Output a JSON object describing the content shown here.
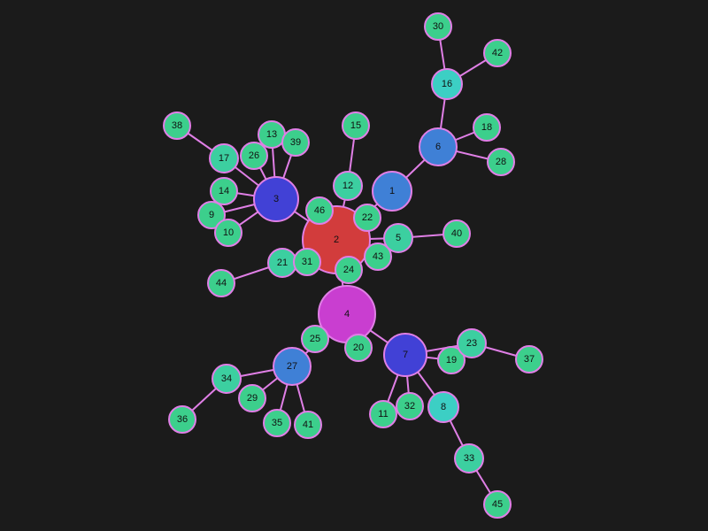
{
  "colors": {
    "background": "#1b1b1b",
    "edge": "#e07fe6",
    "node_stroke": "#e07fe6",
    "label": "#111111"
  },
  "graph": {
    "nodes": [
      {
        "id": "1",
        "color": "#3f80d6"
      },
      {
        "id": "2",
        "color": "#d23c3c"
      },
      {
        "id": "3",
        "color": "#4141d6"
      },
      {
        "id": "4",
        "color": "#c93ed0"
      },
      {
        "id": "5",
        "color": "#3ccfa0"
      },
      {
        "id": "6",
        "color": "#3f80d6"
      },
      {
        "id": "7",
        "color": "#4141d6"
      },
      {
        "id": "8",
        "color": "#3ccfc4"
      },
      {
        "id": "9",
        "color": "#3ccf8c"
      },
      {
        "id": "10",
        "color": "#3ccf8c"
      },
      {
        "id": "11",
        "color": "#3ccf8c"
      },
      {
        "id": "12",
        "color": "#3ccfa0"
      },
      {
        "id": "13",
        "color": "#3ccf8c"
      },
      {
        "id": "14",
        "color": "#3ccf8c"
      },
      {
        "id": "15",
        "color": "#3ccf8c"
      },
      {
        "id": "16",
        "color": "#3ccfc4"
      },
      {
        "id": "17",
        "color": "#3ccfa0"
      },
      {
        "id": "18",
        "color": "#3ccf8c"
      },
      {
        "id": "19",
        "color": "#3ccf8c"
      },
      {
        "id": "20",
        "color": "#3ccf8c"
      },
      {
        "id": "21",
        "color": "#3ccfa0"
      },
      {
        "id": "22",
        "color": "#3ccf8c"
      },
      {
        "id": "23",
        "color": "#3ccfa0"
      },
      {
        "id": "24",
        "color": "#3ccf8c"
      },
      {
        "id": "25",
        "color": "#3ccf8c"
      },
      {
        "id": "26",
        "color": "#3ccf8c"
      },
      {
        "id": "27",
        "color": "#3f80d6"
      },
      {
        "id": "28",
        "color": "#3ccf8c"
      },
      {
        "id": "29",
        "color": "#3ccf8c"
      },
      {
        "id": "30",
        "color": "#3ccf8c"
      },
      {
        "id": "31",
        "color": "#3ccf8c"
      },
      {
        "id": "32",
        "color": "#3ccf8c"
      },
      {
        "id": "33",
        "color": "#3ccfa0"
      },
      {
        "id": "34",
        "color": "#3ccfa0"
      },
      {
        "id": "35",
        "color": "#3ccf8c"
      },
      {
        "id": "36",
        "color": "#3ccf8c"
      },
      {
        "id": "37",
        "color": "#3ccf8c"
      },
      {
        "id": "38",
        "color": "#3ccf8c"
      },
      {
        "id": "39",
        "color": "#3ccf8c"
      },
      {
        "id": "40",
        "color": "#3ccf8c"
      },
      {
        "id": "41",
        "color": "#3ccf8c"
      },
      {
        "id": "42",
        "color": "#3ccf8c"
      },
      {
        "id": "43",
        "color": "#3ccf8c"
      },
      {
        "id": "44",
        "color": "#3ccf8c"
      },
      {
        "id": "45",
        "color": "#3ccf8c"
      },
      {
        "id": "46",
        "color": "#3ccf8c"
      }
    ],
    "edges": [
      [
        "2",
        "1"
      ],
      [
        "2",
        "3"
      ],
      [
        "2",
        "4"
      ],
      [
        "2",
        "5"
      ],
      [
        "2",
        "12"
      ],
      [
        "2",
        "21"
      ],
      [
        "2",
        "22"
      ],
      [
        "2",
        "24"
      ],
      [
        "2",
        "31"
      ],
      [
        "2",
        "43"
      ],
      [
        "2",
        "46"
      ],
      [
        "1",
        "6"
      ],
      [
        "6",
        "16"
      ],
      [
        "6",
        "18"
      ],
      [
        "6",
        "28"
      ],
      [
        "16",
        "30"
      ],
      [
        "16",
        "42"
      ],
      [
        "3",
        "9"
      ],
      [
        "3",
        "10"
      ],
      [
        "3",
        "13"
      ],
      [
        "3",
        "14"
      ],
      [
        "3",
        "17"
      ],
      [
        "3",
        "26"
      ],
      [
        "3",
        "39"
      ],
      [
        "17",
        "38"
      ],
      [
        "12",
        "15"
      ],
      [
        "5",
        "40"
      ],
      [
        "21",
        "44"
      ],
      [
        "4",
        "7"
      ],
      [
        "4",
        "20"
      ],
      [
        "4",
        "25"
      ],
      [
        "4",
        "27"
      ],
      [
        "7",
        "8"
      ],
      [
        "7",
        "11"
      ],
      [
        "7",
        "19"
      ],
      [
        "7",
        "23"
      ],
      [
        "7",
        "32"
      ],
      [
        "8",
        "33"
      ],
      [
        "33",
        "45"
      ],
      [
        "23",
        "37"
      ],
      [
        "27",
        "29"
      ],
      [
        "27",
        "34"
      ],
      [
        "27",
        "35"
      ],
      [
        "27",
        "41"
      ],
      [
        "34",
        "36"
      ]
    ]
  }
}
